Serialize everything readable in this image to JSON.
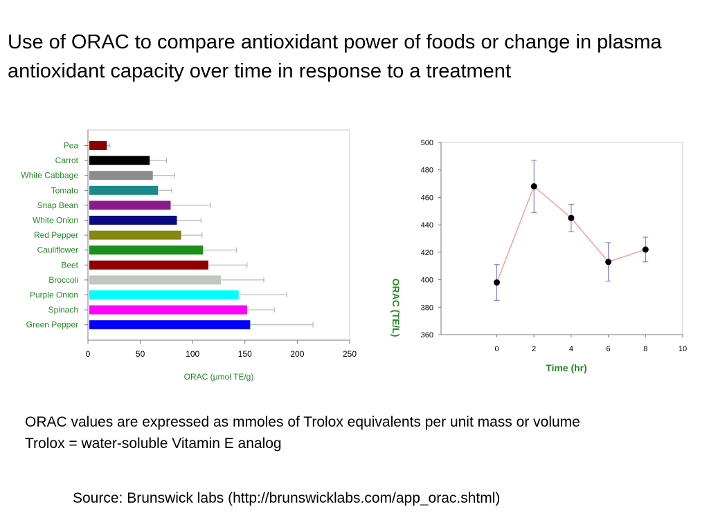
{
  "slide": {
    "title": "Use of ORAC to compare antioxidant power of foods or change in plasma antioxidant capacity over time in response to a treatment",
    "note_line1": "ORAC values are expressed as mmoles of Trolox equivalents per unit mass or volume",
    "note_line2": "Trolox = water-soluble Vitamin E analog",
    "source": "Source: Brunswick labs (http://brunswicklabs.com/app_orac.shtml)"
  },
  "chart_data": [
    {
      "type": "bar",
      "orientation": "horizontal",
      "categories": [
        "Pea",
        "Carrot",
        "White Cabbage",
        "Tomato",
        "Snap Bean",
        "White Onion",
        "Red Pepper",
        "Cauliflower",
        "Beet",
        "Broccoli",
        "Purple Onion",
        "Spinach",
        "Green Pepper"
      ],
      "values": [
        18,
        59,
        62,
        67,
        79,
        85,
        89,
        110,
        115,
        127,
        144,
        152,
        155
      ],
      "errors": [
        3,
        16,
        21,
        13,
        38,
        23,
        20,
        32,
        37,
        41,
        46,
        26,
        60
      ],
      "colors": [
        "#8b0000",
        "#000000",
        "#8c8c8c",
        "#1a8a8a",
        "#8b1a8b",
        "#0a0a80",
        "#868610",
        "#1a8f1a",
        "#900000",
        "#c0c6c0",
        "#00ffff",
        "#ff00ff",
        "#0000ff"
      ],
      "xlabel": "ORAC (μmol TE/g)",
      "xlim": [
        0,
        250
      ],
      "xticks": [
        0,
        50,
        100,
        150,
        200,
        250
      ],
      "label_color": "#228b22",
      "grid": false
    },
    {
      "type": "line",
      "x": [
        0,
        2,
        4,
        6,
        8
      ],
      "y": [
        398,
        468,
        445,
        413,
        422
      ],
      "errors": [
        13,
        19,
        10,
        14,
        9
      ],
      "xlabel": "Time (hr)",
      "ylabel": "ORAC (TE/L)",
      "xlim": [
        -3,
        10
      ],
      "ylim": [
        360,
        500
      ],
      "xticks": [
        0,
        2,
        4,
        6,
        8,
        10
      ],
      "yticks": [
        360,
        380,
        400,
        420,
        440,
        460,
        480,
        500
      ],
      "line_color": "#f4a0a0",
      "marker_color": "#000000",
      "errorbar_color": "#6a6ad8",
      "label_color": "#228b22",
      "grid": false
    }
  ]
}
